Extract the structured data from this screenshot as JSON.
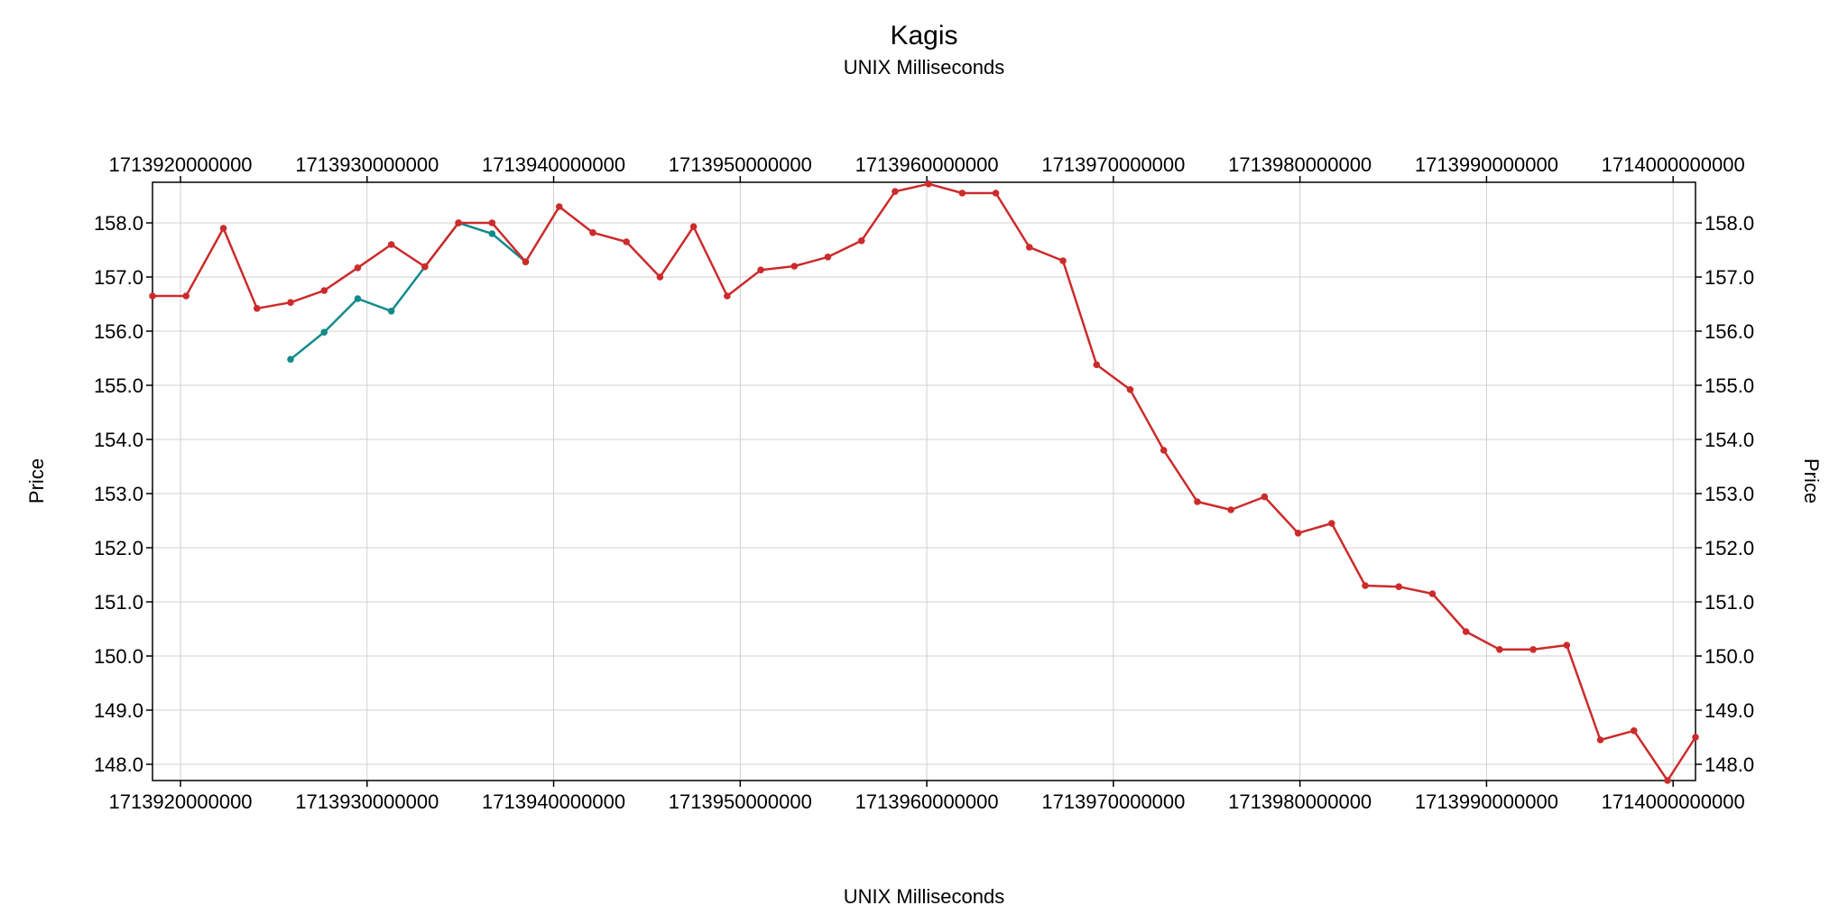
{
  "chart_data": {
    "type": "line",
    "title": "Kagis",
    "subtitle": "UNIX Milliseconds",
    "xlabel": "UNIX Milliseconds",
    "ylabel": "Price",
    "ylabel_right": "Price",
    "xlim": [
      1713918500000,
      1714001200000
    ],
    "ylim": [
      147.7,
      158.75
    ],
    "grid": true,
    "x_ticks": [
      1713920000000,
      1713930000000,
      1713940000000,
      1713950000000,
      1713960000000,
      1713970000000,
      1713980000000,
      1713990000000,
      1714000000000
    ],
    "x_tick_labels": [
      "1713920000000",
      "1713930000000",
      "1713940000000",
      "1713950000000",
      "1713960000000",
      "1713970000000",
      "1713980000000",
      "1713990000000",
      "1714000000000"
    ],
    "y_ticks": [
      148,
      149,
      150,
      151,
      152,
      153,
      154,
      155,
      156,
      157,
      158
    ],
    "y_tick_labels": [
      "148.0",
      "149.0",
      "150.0",
      "151.0",
      "152.0",
      "153.0",
      "154.0",
      "155.0",
      "156.0",
      "157.0",
      "158.0"
    ],
    "colors": {
      "series_a": "#cc2b2b",
      "series_b": "#138a8a",
      "grid": "#d0d0d0"
    },
    "series": [
      {
        "color": "#cc2b2b",
        "points": [
          [
            1713918500000,
            156.65
          ],
          [
            1713920300000,
            156.65
          ],
          [
            1713922300000,
            157.9
          ],
          [
            1713924100000,
            156.42
          ],
          [
            1713925900000,
            156.53
          ],
          [
            1713927700000,
            156.75
          ],
          [
            1713929500000,
            157.17
          ],
          [
            1713931300000,
            157.6
          ],
          [
            1713933100000,
            157.19
          ],
          [
            1713934900000,
            158.0
          ],
          [
            1713936700000,
            158.0
          ],
          [
            1713938500000,
            157.28
          ],
          [
            1713940300000,
            158.3
          ],
          [
            1713942100000,
            157.82
          ],
          [
            1713943900000,
            157.65
          ],
          [
            1713945700000,
            157.0
          ],
          [
            1713947500000,
            157.93
          ],
          [
            1713949300000,
            156.65
          ],
          [
            1713951100000,
            157.13
          ],
          [
            1713952900000,
            157.2
          ],
          [
            1713954700000,
            157.37
          ],
          [
            1713956500000,
            157.67
          ],
          [
            1713958300000,
            158.58
          ],
          [
            1713960100000,
            158.72
          ],
          [
            1713961900000,
            158.55
          ],
          [
            1713963700000,
            158.55
          ],
          [
            1713965500000,
            157.55
          ],
          [
            1713967300000,
            157.3
          ],
          [
            1713969100000,
            155.38
          ],
          [
            1713970900000,
            154.92
          ],
          [
            1713972700000,
            153.8
          ],
          [
            1713974500000,
            152.85
          ],
          [
            1713976300000,
            152.7
          ],
          [
            1713978100000,
            152.94
          ],
          [
            1713979900000,
            152.27
          ],
          [
            1713981700000,
            152.45
          ],
          [
            1713983500000,
            151.3
          ],
          [
            1713985300000,
            151.28
          ],
          [
            1713987100000,
            151.15
          ],
          [
            1713988900000,
            150.45
          ],
          [
            1713990700000,
            150.12
          ],
          [
            1713992500000,
            150.12
          ],
          [
            1713994300000,
            150.2
          ],
          [
            1713996100000,
            148.45
          ],
          [
            1713997900000,
            148.62
          ],
          [
            1713999700000,
            147.7
          ],
          [
            1714001200000,
            148.5
          ]
        ]
      },
      {
        "color": "#138a8a",
        "points": [
          [
            1713925900000,
            155.48
          ],
          [
            1713927700000,
            155.98
          ],
          [
            1713929500000,
            156.6
          ],
          [
            1713931300000,
            156.37
          ],
          [
            1713933100000,
            157.19
          ],
          [
            1713934900000,
            158.0
          ],
          [
            1713936700000,
            157.8
          ],
          [
            1713938500000,
            157.28
          ]
        ]
      }
    ]
  }
}
